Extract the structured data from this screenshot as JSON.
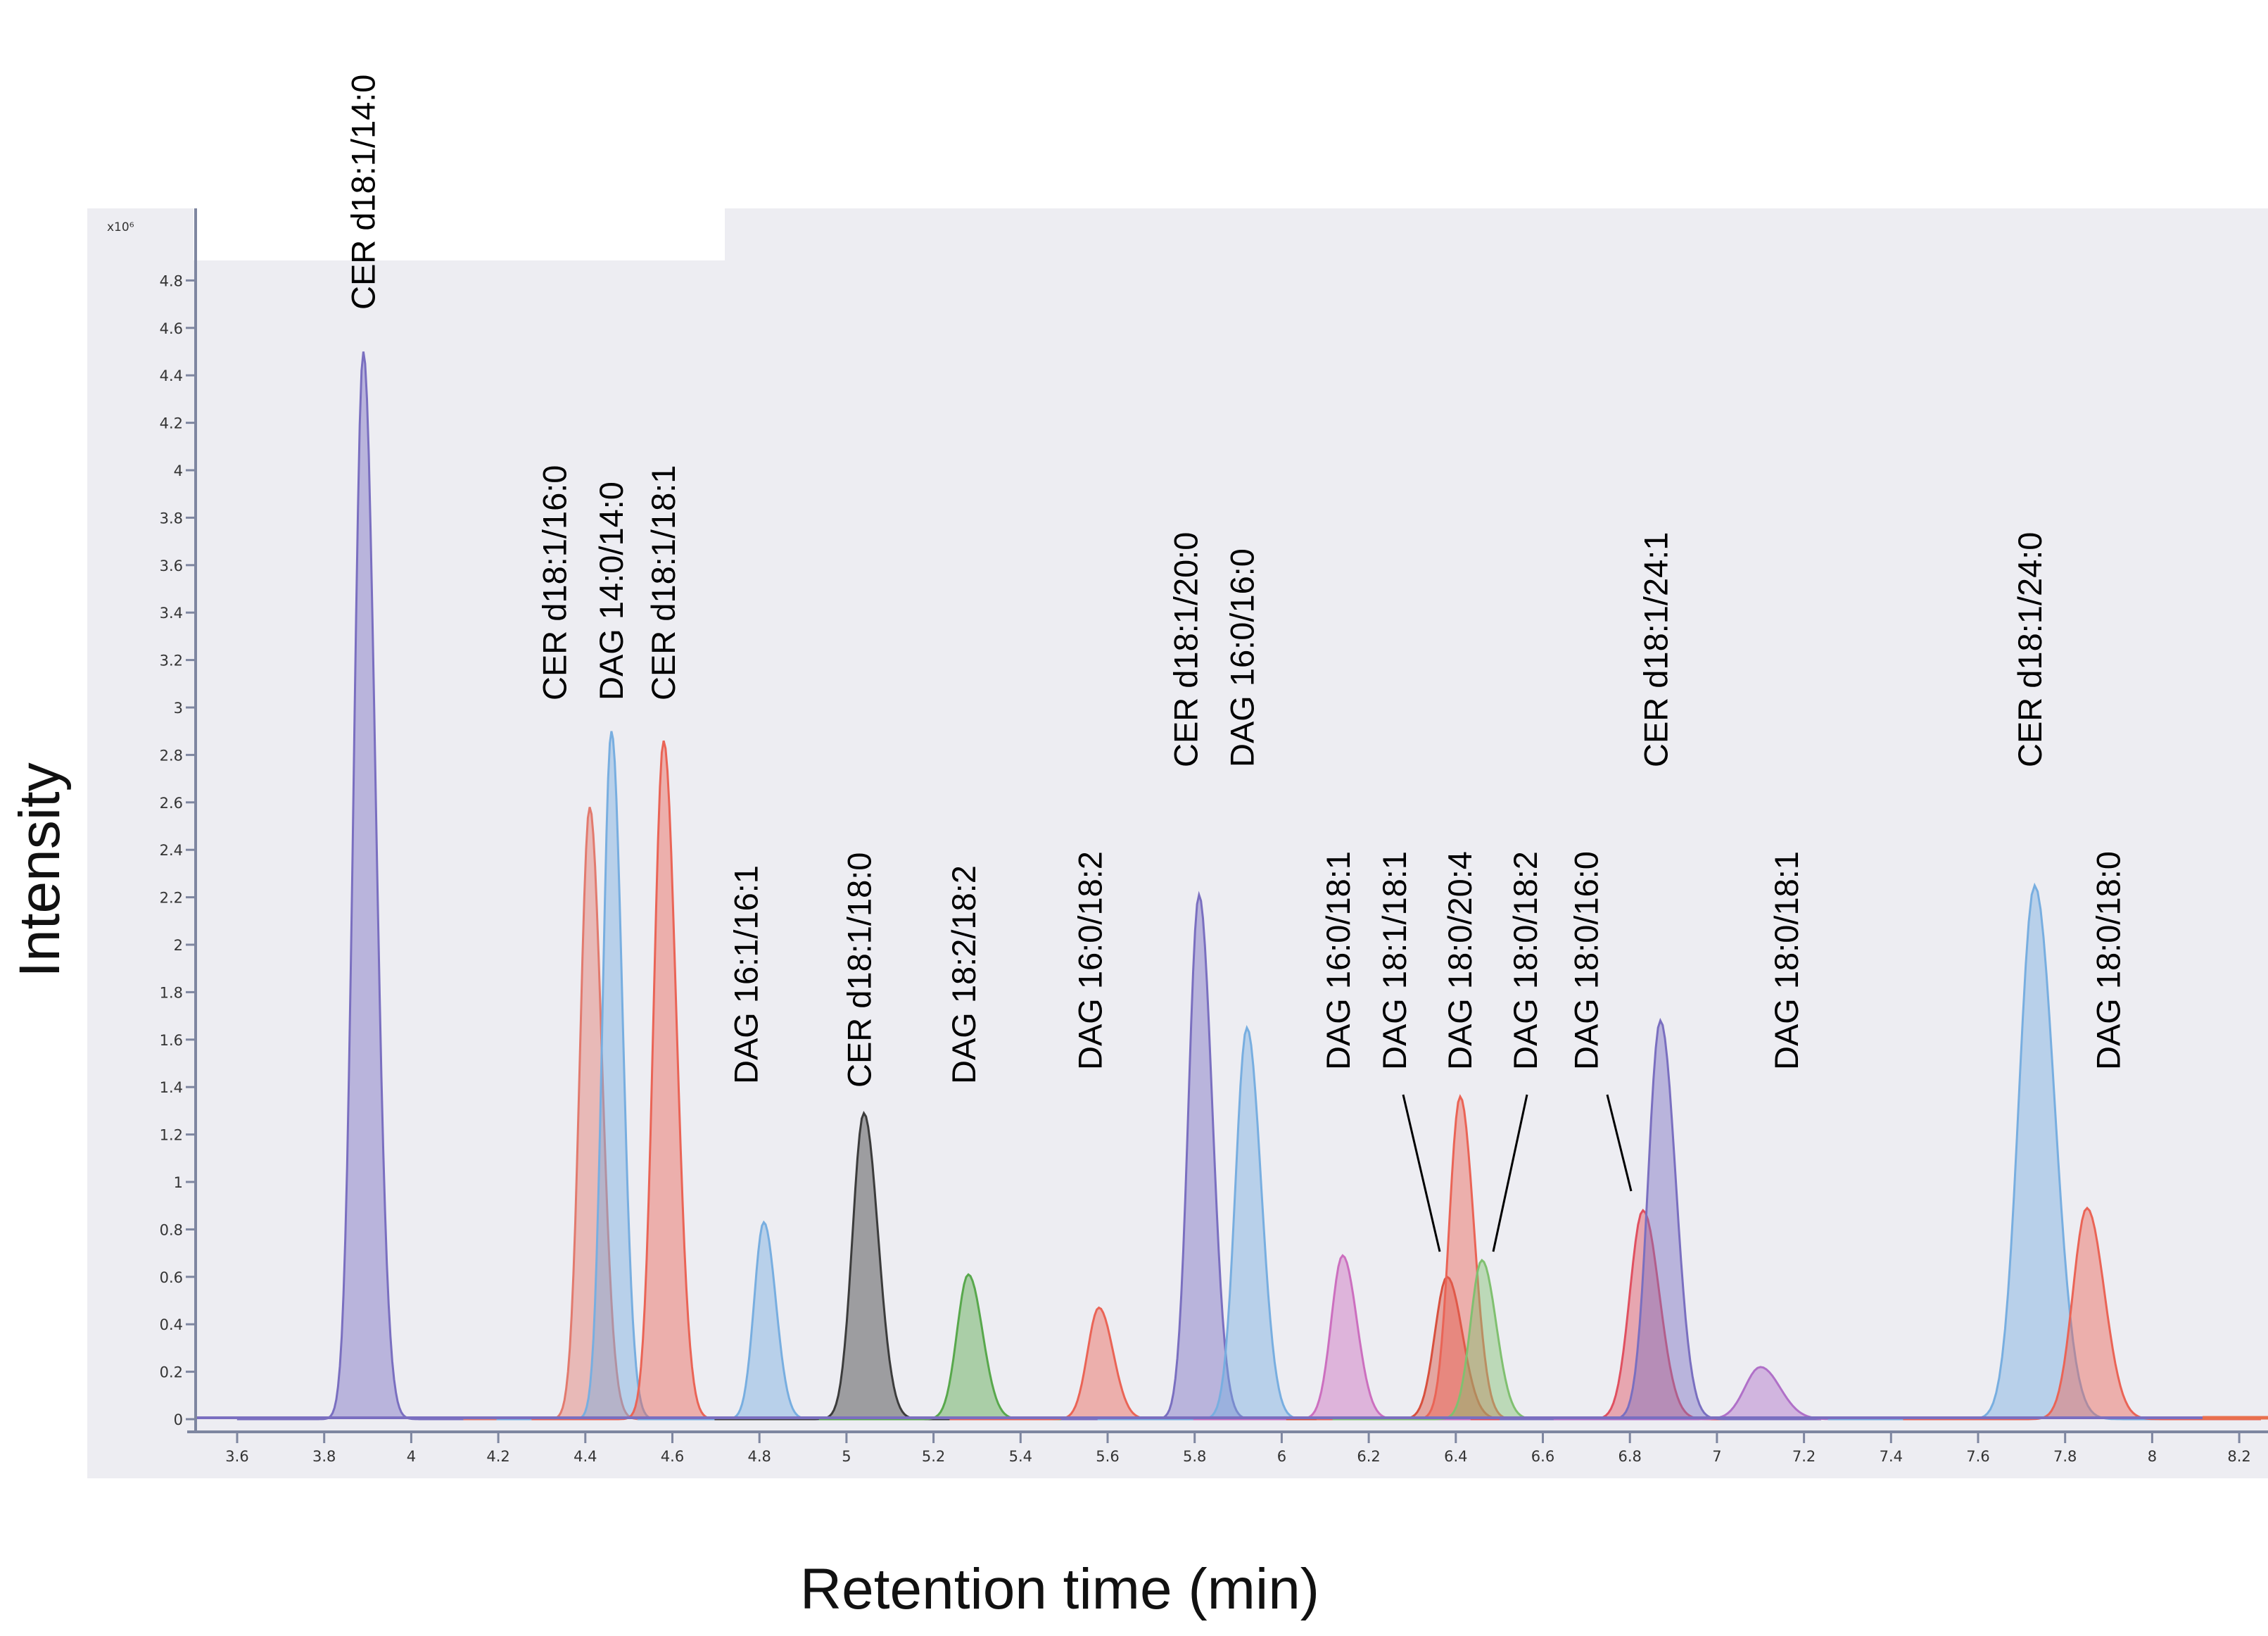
{
  "chart_data": {
    "type": "line",
    "title": "",
    "xlabel": "Retention time (min)",
    "ylabel": "Intensity",
    "y_multiplier": "x10⁶",
    "xlim": [
      3.45,
      8.25
    ],
    "ylim": [
      -0.1,
      5.0
    ],
    "x_ticks": [
      "3.6",
      "3.8",
      "4",
      "4.2",
      "4.4",
      "4.6",
      "4.8",
      "5",
      "5.2",
      "5.4",
      "5.6",
      "5.8",
      "6",
      "6.2",
      "6.4",
      "6.6",
      "6.8",
      "7",
      "7.2",
      "7.4",
      "7.6",
      "7.8",
      "8",
      "8.2"
    ],
    "y_ticks": [
      "0",
      "0.2",
      "0.4",
      "0.6",
      "0.8",
      "1",
      "1.2",
      "1.4",
      "1.6",
      "1.8",
      "2",
      "2.2",
      "2.4",
      "2.6",
      "2.8",
      "3",
      "3.2",
      "3.4",
      "3.6",
      "3.8",
      "4",
      "4.2",
      "4.4",
      "4.6",
      "4.8"
    ],
    "grid": false,
    "series": [
      {
        "name": "CER d18:1/14:0",
        "rt": 3.89,
        "apex": 4.5,
        "sigma": 0.022,
        "color": "#7a6fc0"
      },
      {
        "name": "CER d18:1/16:0",
        "rt": 4.41,
        "apex": 2.58,
        "sigma": 0.022,
        "color": "#e27a6e"
      },
      {
        "name": "DAG 14:0/14:0",
        "rt": 4.46,
        "apex": 2.9,
        "sigma": 0.02,
        "color": "#78aee0"
      },
      {
        "name": "CER d18:1/18:1",
        "rt": 4.58,
        "apex": 2.86,
        "sigma": 0.023,
        "color": "#ea6456"
      },
      {
        "name": "DAG 16:1/16:1",
        "rt": 4.81,
        "apex": 0.83,
        "sigma": 0.022,
        "color": "#78aee0"
      },
      {
        "name": "CER d18:1/18:0",
        "rt": 5.04,
        "apex": 1.29,
        "sigma": 0.026,
        "color": "#3c3c3c"
      },
      {
        "name": "DAG 18:2/18:2",
        "rt": 5.28,
        "apex": 0.61,
        "sigma": 0.026,
        "color": "#58a84c"
      },
      {
        "name": "DAG 16:0/18:2",
        "rt": 5.58,
        "apex": 0.47,
        "sigma": 0.026,
        "color": "#ea6456"
      },
      {
        "name": "CER d18:1/20:0",
        "rt": 5.81,
        "apex": 2.21,
        "sigma": 0.024,
        "color": "#7a6fc0"
      },
      {
        "name": "DAG 16:0/16:0",
        "rt": 5.92,
        "apex": 1.65,
        "sigma": 0.026,
        "color": "#78aee0"
      },
      {
        "name": "DAG 16:0/18:1",
        "rt": 6.14,
        "apex": 0.69,
        "sigma": 0.026,
        "color": "#cc6fbf"
      },
      {
        "name": "DAG 18:1/18:1",
        "rt": 6.38,
        "apex": 0.6,
        "sigma": 0.028,
        "color": "#d8503e"
      },
      {
        "name": "DAG 18:0/20:4",
        "rt": 6.41,
        "apex": 1.36,
        "sigma": 0.025,
        "color": "#ea6456"
      },
      {
        "name": "DAG 18:0/18:2",
        "rt": 6.46,
        "apex": 0.67,
        "sigma": 0.026,
        "color": "#80c070"
      },
      {
        "name": "DAG 18:0/16:0",
        "rt": 6.83,
        "apex": 0.88,
        "sigma": 0.03,
        "color": "#e05060"
      },
      {
        "name": "CER d18:1/24:1",
        "rt": 6.87,
        "apex": 1.68,
        "sigma": 0.028,
        "color": "#7a6fc0"
      },
      {
        "name": "DAG 18:0/18:1",
        "rt": 7.1,
        "apex": 0.22,
        "sigma": 0.036,
        "color": "#b070c8"
      },
      {
        "name": "CER d18:1/24:0",
        "rt": 7.73,
        "apex": 2.25,
        "sigma": 0.036,
        "color": "#78aee0"
      },
      {
        "name": "DAG 18:0/18:0",
        "rt": 7.85,
        "apex": 0.89,
        "sigma": 0.032,
        "color": "#ea6456"
      }
    ],
    "annotations": [
      {
        "text": "CER d18:1/14:0",
        "x": 3.89
      },
      {
        "text": "CER d18:1/16:0",
        "x": 4.33
      },
      {
        "text": "DAG 14:0/14:0",
        "x": 4.46
      },
      {
        "text": "CER d18:1/18:1",
        "x": 4.58
      },
      {
        "text": "DAG 16:1/16:1",
        "x": 4.77
      },
      {
        "text": "CER d18:1/18:0",
        "x": 5.03
      },
      {
        "text": "DAG 18:2/18:2",
        "x": 5.27
      },
      {
        "text": "DAG 16:0/18:2",
        "x": 5.56
      },
      {
        "text": "CER d18:1/20:0",
        "x": 5.78
      },
      {
        "text": "DAG 16:0/16:0",
        "x": 5.91
      },
      {
        "text": "DAG 16:0/18:1",
        "x": 6.13
      },
      {
        "text": "DAG 18:1/18:1",
        "x": 6.26
      },
      {
        "text": "DAG 18:0/20:4",
        "x": 6.41
      },
      {
        "text": "DAG 18:0/18:2",
        "x": 6.56
      },
      {
        "text": "DAG 18:0/16:0",
        "x": 6.7
      },
      {
        "text": "CER d18:1/24:1",
        "x": 6.86
      },
      {
        "text": "DAG 18:0/18:1",
        "x": 7.16
      },
      {
        "text": "CER d18:1/24:0",
        "x": 7.72
      },
      {
        "text": "DAG 18:0/18:0",
        "x": 7.9
      }
    ]
  }
}
